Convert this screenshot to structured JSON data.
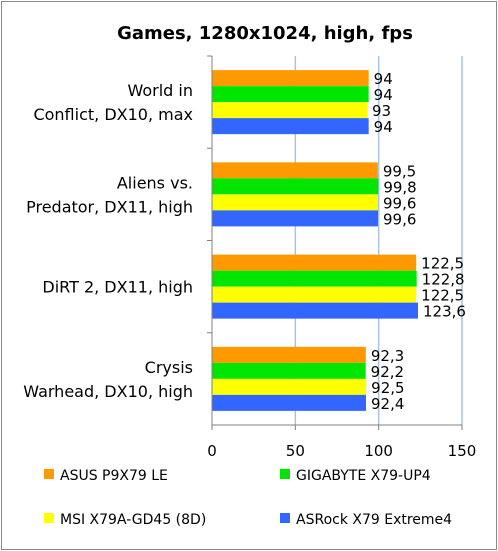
{
  "chart_data": {
    "type": "bar",
    "orientation": "horizontal",
    "title": "Games, 1280x1024, high, fps",
    "xlabel": "",
    "ylabel": "",
    "xlim": [
      0,
      150
    ],
    "x_ticks": [
      "0",
      "50",
      "100",
      "150"
    ],
    "grid": "vertical",
    "legend_position": "bottom",
    "categories": [
      [
        "World in",
        "Conflict, DX10, max"
      ],
      [
        "Aliens vs.",
        "Predator, DX11, high"
      ],
      [
        "DiRT 2, DX11, high"
      ],
      [
        "Crysis",
        "Warhead, DX10, high"
      ]
    ],
    "series": [
      {
        "name": "ASUS P9X79 LE",
        "color": "#ff9900",
        "values": [
          94,
          99.5,
          122.5,
          92.3
        ],
        "labels": [
          "94",
          "99,5",
          "122,5",
          "92,3"
        ]
      },
      {
        "name": "GIGABYTE X79-UP4",
        "color": "#00e600",
        "values": [
          94,
          99.8,
          122.8,
          92.2
        ],
        "labels": [
          "94",
          "99,8",
          "122,8",
          "92,2"
        ]
      },
      {
        "name": "MSI X79A-GD45 (8D)",
        "color": "#ffff00",
        "values": [
          93,
          99.6,
          122.5,
          92.5
        ],
        "labels": [
          "93",
          "99,6",
          "122,5",
          "92,5"
        ]
      },
      {
        "name": "ASRock X79 Extreme4",
        "color": "#3366ff",
        "values": [
          94,
          99.6,
          123.6,
          92.4
        ],
        "labels": [
          "94",
          "99,6",
          "123,6",
          "92,4"
        ]
      }
    ]
  }
}
